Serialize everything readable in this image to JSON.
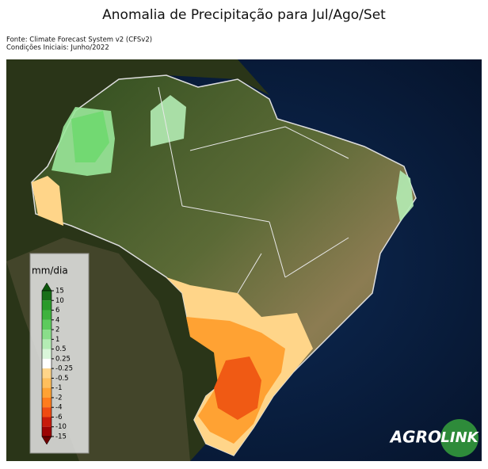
{
  "header": {
    "title": "Anomalia de Precipitação para Jul/Ago/Set",
    "source": "Fonte: Climate Forecast System v2 (CFSv2)",
    "conditions": "Condições Iniciais: Junho/2022"
  },
  "colorbar": {
    "label": "mm/dia",
    "ticks": [
      15,
      10,
      6,
      4,
      2,
      1,
      0.5,
      0.25,
      -0.25,
      -0.5,
      -1,
      -2,
      -4,
      -6,
      -10,
      -15
    ],
    "colors": [
      "#186f18",
      "#2a9a2a",
      "#3eb23e",
      "#5dcb5d",
      "#8ade8a",
      "#b4ecb4",
      "#daf6da",
      "#ffffff",
      "#ffd589",
      "#ffbf5c",
      "#ffa233",
      "#ff7c1c",
      "#ef4b12",
      "#c81b0b",
      "#9c0303"
    ],
    "over_color": "#0c560c",
    "under_color": "#6e0000"
  },
  "logo": {
    "left": "AGRO",
    "right": "LINK"
  }
}
